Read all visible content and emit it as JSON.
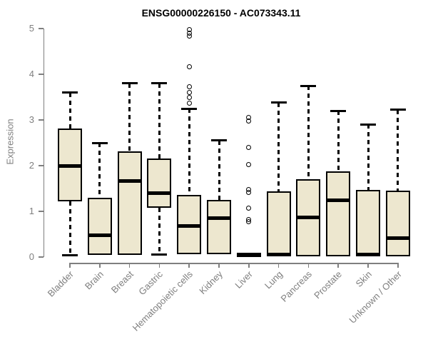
{
  "title": "ENSG00000226150 - AC073343.11",
  "colors": {
    "box_fill": "#EDE7CF",
    "box_border": "#000000",
    "axis": "#7F7F7F",
    "labels": "#7F7F7F",
    "title": "#000000",
    "background": "#FFFFFF"
  },
  "chart_data": {
    "type": "boxplot",
    "title": "ENSG00000226150 - AC073343.11",
    "xlabel": "",
    "ylabel": "Expression",
    "ylim": [
      0,
      5
    ],
    "yticks": [
      0,
      1,
      2,
      3,
      4,
      5
    ],
    "grid": false,
    "legend": false,
    "categories": [
      "Bladder",
      "Brain",
      "Breast",
      "Gastric",
      "Hematopoietic cells",
      "Kidney",
      "Liver",
      "Lung",
      "Pancreas",
      "Prostate",
      "Skin",
      "Unknown / Other"
    ],
    "boxes": [
      {
        "category": "Bladder",
        "whisker_low": 0.04,
        "q1": 1.22,
        "median": 2.0,
        "q3": 2.82,
        "whisker_high": 3.6,
        "outliers": []
      },
      {
        "category": "Brain",
        "whisker_low": 0.05,
        "q1": 0.05,
        "median": 0.48,
        "q3": 1.3,
        "whisker_high": 2.5,
        "outliers": []
      },
      {
        "category": "Breast",
        "whisker_low": 0.05,
        "q1": 0.05,
        "median": 1.67,
        "q3": 2.32,
        "whisker_high": 3.8,
        "outliers": []
      },
      {
        "category": "Gastric",
        "whisker_low": 0.06,
        "q1": 1.08,
        "median": 1.4,
        "q3": 2.15,
        "whisker_high": 3.8,
        "outliers": []
      },
      {
        "category": "Hematopoietic cells",
        "whisker_low": 0.07,
        "q1": 0.07,
        "median": 0.68,
        "q3": 1.36,
        "whisker_high": 3.25,
        "outliers": [
          4.97,
          4.9,
          4.84,
          4.17,
          3.73,
          3.6,
          3.5,
          3.36
        ]
      },
      {
        "category": "Kidney",
        "whisker_low": 0.07,
        "q1": 0.07,
        "median": 0.85,
        "q3": 1.25,
        "whisker_high": 2.55,
        "outliers": []
      },
      {
        "category": "Liver",
        "whisker_low": 0.02,
        "q1": 0.02,
        "median": 0.05,
        "q3": 0.08,
        "whisker_high": 0.08,
        "outliers": [
          3.05,
          2.97,
          2.4,
          2.02,
          1.47,
          1.42,
          1.07,
          0.82,
          0.78
        ]
      },
      {
        "category": "Lung",
        "whisker_low": 0.02,
        "q1": 0.02,
        "median": 0.05,
        "q3": 1.43,
        "whisker_high": 3.38,
        "outliers": []
      },
      {
        "category": "Pancreas",
        "whisker_low": 0.02,
        "q1": 0.02,
        "median": 0.86,
        "q3": 1.7,
        "whisker_high": 3.75,
        "outliers": []
      },
      {
        "category": "Prostate",
        "whisker_low": 0.02,
        "q1": 0.02,
        "median": 1.25,
        "q3": 1.88,
        "whisker_high": 3.2,
        "outliers": []
      },
      {
        "category": "Skin",
        "whisker_low": 0.02,
        "q1": 0.02,
        "median": 0.05,
        "q3": 1.47,
        "whisker_high": 2.9,
        "outliers": []
      },
      {
        "category": "Unknown / Other",
        "whisker_low": 0.02,
        "q1": 0.02,
        "median": 0.42,
        "q3": 1.45,
        "whisker_high": 3.22,
        "outliers": []
      }
    ]
  }
}
